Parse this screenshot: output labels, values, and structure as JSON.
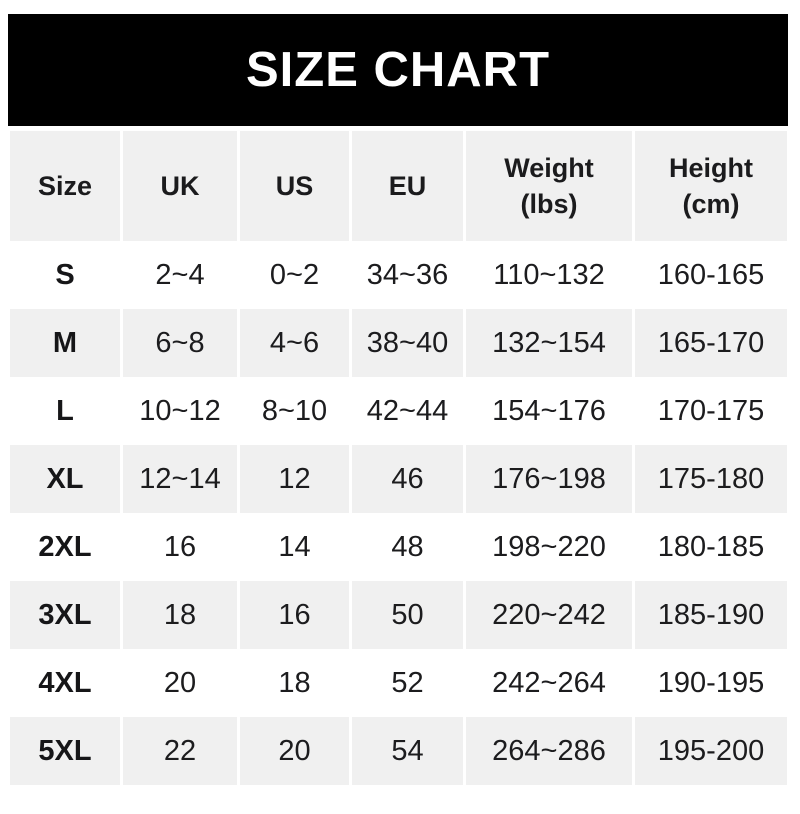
{
  "banner": {
    "title": "SIZE CHART"
  },
  "colors": {
    "banner_bg": "#000000",
    "banner_text": "#ffffff",
    "alt_row_bg": "#f0f0f0",
    "row_bg": "#ffffff",
    "text": "#1c1c1e"
  },
  "chart_data": {
    "type": "table",
    "title": "SIZE CHART",
    "columns": [
      "Size",
      "UK",
      "US",
      "EU",
      "Weight\n(lbs)",
      "Height\n(cm)"
    ],
    "rows": [
      [
        "S",
        "2~4",
        "0~2",
        "34~36",
        "110~132",
        "160-165"
      ],
      [
        "M",
        "6~8",
        "4~6",
        "38~40",
        "132~154",
        "165-170"
      ],
      [
        "L",
        "10~12",
        "8~10",
        "42~44",
        "154~176",
        "170-175"
      ],
      [
        "XL",
        "12~14",
        "12",
        "46",
        "176~198",
        "175-180"
      ],
      [
        "2XL",
        "16",
        "14",
        "48",
        "198~220",
        "180-185"
      ],
      [
        "3XL",
        "18",
        "16",
        "50",
        "220~242",
        "185-190"
      ],
      [
        "4XL",
        "20",
        "18",
        "52",
        "242~264",
        "190-195"
      ],
      [
        "5XL",
        "22",
        "20",
        "54",
        "264~286",
        "195-200"
      ]
    ],
    "layout": {
      "row_striping": "even rows shaded light gray",
      "column_gaps": "thin white vertical gaps between columns"
    }
  }
}
